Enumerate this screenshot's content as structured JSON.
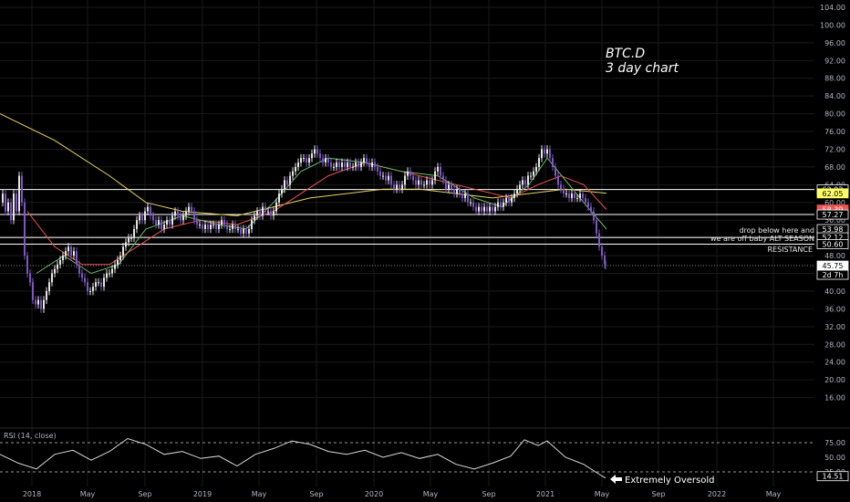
{
  "chart_data": {
    "type": "line",
    "title": "BTC.D",
    "subtitle": "3 day chart",
    "y_axis": {
      "ylim": [
        12,
        104
      ],
      "ticks": [
        104,
        100,
        96,
        92,
        88,
        84,
        80,
        76,
        72,
        68,
        64,
        60,
        56,
        52,
        48,
        44,
        40,
        36,
        32,
        28,
        24,
        20,
        16
      ]
    },
    "x_axis": {
      "ticks": [
        "2018",
        "May",
        "Sep",
        "2019",
        "May",
        "Sep",
        "2020",
        "May",
        "Sep",
        "2021",
        "May",
        "Sep",
        "2022",
        "May"
      ]
    },
    "price_tags": [
      {
        "label": "62.92",
        "value": 62.92,
        "bg": "#000000",
        "fg": "#ffffff",
        "border": "#ffffff"
      },
      {
        "label": "62.05",
        "value": 62.05,
        "bg": "#ffff66",
        "fg": "#000000",
        "border": "#ffff66"
      },
      {
        "label": "58.39",
        "value": 58.39,
        "bg": "#ef5350",
        "fg": "#ffffff",
        "border": "#ef5350"
      },
      {
        "label": "57.27",
        "value": 57.27,
        "bg": "#000000",
        "fg": "#ffffff",
        "border": "#ffffff"
      },
      {
        "label": "53.98",
        "value": 53.98,
        "bg": "#000000",
        "fg": "#ffffff",
        "border": "#ffffff"
      },
      {
        "label": "52.12",
        "value": 52.12,
        "bg": "#000000",
        "fg": "#ffffff",
        "border": "#ffffff"
      },
      {
        "label": "50.60",
        "value": 50.6,
        "bg": "#000000",
        "fg": "#ffffff",
        "border": "#ffffff"
      },
      {
        "label": "45.75",
        "value": 45.75,
        "bg": "#ffffff",
        "fg": "#000000",
        "border": "#ffffff"
      }
    ],
    "countdown": "2d 7h",
    "horizontal_levels": [
      62.92,
      57.27,
      52.12,
      50.6
    ],
    "annotations": {
      "line1": "drop below here and",
      "line2": "we are off baby ALT SEASON",
      "resistance": "RESISTANCE",
      "oversold": "Extremely Oversold"
    },
    "price_series": [
      [
        0,
        60
      ],
      [
        3,
        62
      ],
      [
        6,
        58
      ],
      [
        9,
        60
      ],
      [
        12,
        56
      ],
      [
        15,
        62
      ],
      [
        18,
        58
      ],
      [
        21,
        66
      ],
      [
        24,
        60
      ],
      [
        27,
        48
      ],
      [
        30,
        44
      ],
      [
        33,
        42
      ],
      [
        36,
        38
      ],
      [
        39,
        37
      ],
      [
        42,
        38
      ],
      [
        45,
        36
      ],
      [
        48,
        38
      ],
      [
        51,
        40
      ],
      [
        54,
        42
      ],
      [
        57,
        44
      ],
      [
        60,
        45
      ],
      [
        63,
        46
      ],
      [
        66,
        47
      ],
      [
        69,
        48
      ],
      [
        72,
        49
      ],
      [
        75,
        50
      ],
      [
        78,
        48
      ],
      [
        81,
        49
      ],
      [
        84,
        46
      ],
      [
        87,
        44
      ],
      [
        90,
        43
      ],
      [
        93,
        42
      ],
      [
        96,
        40
      ],
      [
        99,
        40
      ],
      [
        102,
        41
      ],
      [
        105,
        42
      ],
      [
        108,
        42
      ],
      [
        111,
        41
      ],
      [
        114,
        43
      ],
      [
        117,
        44
      ],
      [
        120,
        44
      ],
      [
        123,
        45
      ],
      [
        126,
        46
      ],
      [
        129,
        47
      ],
      [
        132,
        48
      ],
      [
        135,
        50
      ],
      [
        138,
        51
      ],
      [
        141,
        52
      ],
      [
        144,
        52
      ],
      [
        147,
        54
      ],
      [
        150,
        56
      ],
      [
        153,
        57
      ],
      [
        156,
        56
      ],
      [
        159,
        58
      ],
      [
        162,
        59
      ],
      [
        165,
        57
      ],
      [
        168,
        56
      ],
      [
        171,
        55
      ],
      [
        174,
        56
      ],
      [
        177,
        54
      ],
      [
        180,
        55
      ],
      [
        183,
        56
      ],
      [
        186,
        55
      ],
      [
        189,
        57
      ],
      [
        192,
        58
      ],
      [
        195,
        57
      ],
      [
        198,
        56
      ],
      [
        201,
        57
      ],
      [
        204,
        58
      ],
      [
        207,
        59
      ],
      [
        210,
        58
      ],
      [
        213,
        56
      ],
      [
        216,
        55
      ],
      [
        219,
        55
      ],
      [
        222,
        54
      ],
      [
        225,
        55
      ],
      [
        228,
        54
      ],
      [
        231,
        55
      ],
      [
        234,
        55
      ],
      [
        237,
        54
      ],
      [
        240,
        55
      ],
      [
        243,
        56
      ],
      [
        246,
        55
      ],
      [
        249,
        54
      ],
      [
        252,
        54
      ],
      [
        255,
        55
      ],
      [
        258,
        54
      ],
      [
        261,
        54
      ],
      [
        264,
        53
      ],
      [
        267,
        54
      ],
      [
        270,
        53
      ],
      [
        273,
        54
      ],
      [
        276,
        56
      ],
      [
        279,
        57
      ],
      [
        282,
        58
      ],
      [
        285,
        57
      ],
      [
        288,
        59
      ],
      [
        291,
        58
      ],
      [
        294,
        58
      ],
      [
        297,
        57
      ],
      [
        300,
        58
      ],
      [
        303,
        60
      ],
      [
        306,
        62
      ],
      [
        309,
        63
      ],
      [
        312,
        65
      ],
      [
        315,
        64
      ],
      [
        318,
        66
      ],
      [
        321,
        67
      ],
      [
        324,
        68
      ],
      [
        327,
        69
      ],
      [
        330,
        70
      ],
      [
        333,
        70
      ],
      [
        336,
        69
      ],
      [
        339,
        70
      ],
      [
        342,
        71
      ],
      [
        345,
        72
      ],
      [
        348,
        71
      ],
      [
        351,
        70
      ],
      [
        354,
        69
      ],
      [
        357,
        70
      ],
      [
        360,
        69
      ],
      [
        363,
        68
      ],
      [
        366,
        68
      ],
      [
        369,
        69
      ],
      [
        372,
        68
      ],
      [
        375,
        69
      ],
      [
        378,
        68
      ],
      [
        381,
        69
      ],
      [
        384,
        68
      ],
      [
        387,
        68
      ],
      [
        390,
        69
      ],
      [
        393,
        68
      ],
      [
        396,
        69
      ],
      [
        399,
        70
      ],
      [
        402,
        69
      ],
      [
        405,
        68
      ],
      [
        408,
        69
      ],
      [
        411,
        68
      ],
      [
        414,
        67
      ],
      [
        417,
        66
      ],
      [
        420,
        66
      ],
      [
        423,
        65
      ],
      [
        426,
        66
      ],
      [
        429,
        64
      ],
      [
        432,
        63
      ],
      [
        435,
        64
      ],
      [
        438,
        63
      ],
      [
        441,
        64
      ],
      [
        444,
        66
      ],
      [
        447,
        67
      ],
      [
        450,
        66
      ],
      [
        453,
        65
      ],
      [
        456,
        64
      ],
      [
        459,
        65
      ],
      [
        462,
        64
      ],
      [
        465,
        64
      ],
      [
        468,
        65
      ],
      [
        471,
        64
      ],
      [
        474,
        65
      ],
      [
        477,
        67
      ],
      [
        480,
        68
      ],
      [
        483,
        66
      ],
      [
        486,
        65
      ],
      [
        489,
        63
      ],
      [
        492,
        64
      ],
      [
        495,
        63
      ],
      [
        498,
        62
      ],
      [
        501,
        63
      ],
      [
        504,
        62
      ],
      [
        507,
        61
      ],
      [
        510,
        62
      ],
      [
        513,
        60
      ],
      [
        516,
        60
      ],
      [
        519,
        59
      ],
      [
        522,
        58
      ],
      [
        525,
        59
      ],
      [
        528,
        58
      ],
      [
        531,
        59
      ],
      [
        534,
        58
      ],
      [
        537,
        59
      ],
      [
        540,
        58
      ],
      [
        543,
        59
      ],
      [
        546,
        60
      ],
      [
        549,
        59
      ],
      [
        552,
        60
      ],
      [
        555,
        61
      ],
      [
        558,
        60
      ],
      [
        561,
        61
      ],
      [
        564,
        62
      ],
      [
        567,
        63
      ],
      [
        570,
        64
      ],
      [
        573,
        65
      ],
      [
        576,
        64
      ],
      [
        579,
        66
      ],
      [
        582,
        66
      ],
      [
        585,
        67
      ],
      [
        588,
        68
      ],
      [
        591,
        70
      ],
      [
        594,
        72
      ],
      [
        597,
        71
      ],
      [
        600,
        72
      ],
      [
        603,
        70
      ],
      [
        606,
        68
      ],
      [
        609,
        66
      ],
      [
        612,
        64
      ],
      [
        615,
        63
      ],
      [
        618,
        62
      ],
      [
        621,
        62
      ],
      [
        624,
        61
      ],
      [
        627,
        62
      ],
      [
        630,
        61
      ],
      [
        633,
        61
      ],
      [
        636,
        62
      ],
      [
        639,
        61
      ],
      [
        642,
        60
      ],
      [
        645,
        59
      ],
      [
        648,
        58
      ],
      [
        651,
        56
      ],
      [
        654,
        53
      ],
      [
        657,
        50
      ],
      [
        660,
        48
      ],
      [
        663,
        46
      ],
      [
        664,
        45.75
      ]
    ],
    "ma_series": [
      {
        "name": "",
        "color": "#e6d35f",
        "points": [
          [
            0,
            80
          ],
          [
            60,
            74
          ],
          [
            120,
            66
          ],
          [
            160,
            60
          ],
          [
            200,
            58
          ],
          [
            260,
            57
          ],
          [
            300,
            59
          ],
          [
            340,
            61
          ],
          [
            380,
            62
          ],
          [
            420,
            63
          ],
          [
            460,
            63
          ],
          [
            500,
            62
          ],
          [
            540,
            61
          ],
          [
            580,
            62
          ],
          [
            620,
            63
          ],
          [
            665,
            62.05
          ]
        ]
      },
      {
        "name": "",
        "color": "#ef5350",
        "points": [
          [
            30,
            58
          ],
          [
            60,
            50
          ],
          [
            90,
            46
          ],
          [
            120,
            46
          ],
          [
            150,
            50
          ],
          [
            180,
            54
          ],
          [
            220,
            56
          ],
          [
            260,
            55
          ],
          [
            300,
            58
          ],
          [
            330,
            62
          ],
          [
            360,
            66
          ],
          [
            400,
            69
          ],
          [
            440,
            67
          ],
          [
            480,
            65
          ],
          [
            520,
            63
          ],
          [
            560,
            61
          ],
          [
            590,
            64
          ],
          [
            615,
            66
          ],
          [
            640,
            64
          ],
          [
            665,
            58.39
          ]
        ]
      },
      {
        "name": "",
        "color": "#66bb6a",
        "points": [
          [
            40,
            44
          ],
          [
            70,
            48
          ],
          [
            100,
            44
          ],
          [
            130,
            46
          ],
          [
            160,
            54
          ],
          [
            200,
            57
          ],
          [
            240,
            55
          ],
          [
            270,
            54
          ],
          [
            300,
            60
          ],
          [
            330,
            67
          ],
          [
            360,
            70
          ],
          [
            400,
            69
          ],
          [
            440,
            67
          ],
          [
            480,
            66
          ],
          [
            520,
            61
          ],
          [
            550,
            59
          ],
          [
            580,
            64
          ],
          [
            600,
            70
          ],
          [
            620,
            65
          ],
          [
            640,
            60
          ],
          [
            665,
            53.98
          ]
        ]
      }
    ],
    "rsi": {
      "label": "RSI (14, close)",
      "ticks": [
        "75.00",
        "50.00",
        "25.00"
      ],
      "current": "14.51",
      "series": [
        [
          0,
          55
        ],
        [
          20,
          40
        ],
        [
          40,
          30
        ],
        [
          60,
          55
        ],
        [
          80,
          62
        ],
        [
          100,
          45
        ],
        [
          120,
          60
        ],
        [
          140,
          82
        ],
        [
          160,
          72
        ],
        [
          180,
          55
        ],
        [
          200,
          60
        ],
        [
          220,
          48
        ],
        [
          240,
          52
        ],
        [
          260,
          35
        ],
        [
          280,
          55
        ],
        [
          300,
          65
        ],
        [
          320,
          78
        ],
        [
          340,
          72
        ],
        [
          360,
          60
        ],
        [
          380,
          55
        ],
        [
          400,
          62
        ],
        [
          420,
          50
        ],
        [
          440,
          58
        ],
        [
          460,
          48
        ],
        [
          480,
          55
        ],
        [
          500,
          38
        ],
        [
          520,
          30
        ],
        [
          540,
          40
        ],
        [
          560,
          52
        ],
        [
          575,
          80
        ],
        [
          590,
          70
        ],
        [
          600,
          78
        ],
        [
          620,
          50
        ],
        [
          640,
          38
        ],
        [
          660,
          18
        ],
        [
          664,
          14.51
        ]
      ]
    }
  }
}
